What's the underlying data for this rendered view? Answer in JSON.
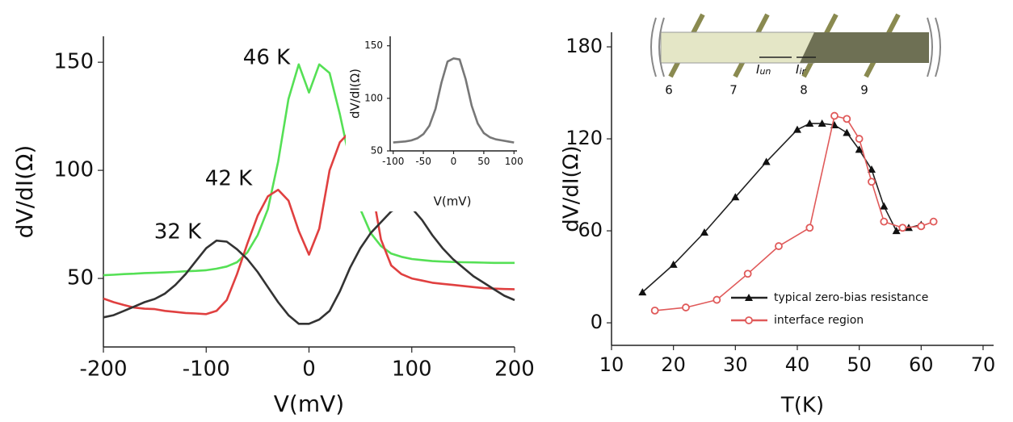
{
  "chart_data": [
    {
      "type": "line",
      "xlabel": "V(mV)",
      "ylabel": "dV/dI(Ω)",
      "x": [
        -200,
        -190,
        -180,
        -170,
        -160,
        -150,
        -140,
        -130,
        -120,
        -110,
        -100,
        -90,
        -80,
        -70,
        -60,
        -50,
        -40,
        -30,
        -20,
        -10,
        0,
        10,
        20,
        30,
        40,
        50,
        60,
        70,
        80,
        90,
        100,
        110,
        120,
        130,
        140,
        150,
        160,
        170,
        180,
        190,
        200
      ],
      "series": [
        {
          "name": "46 K",
          "color": "#55e055",
          "values": [
            51.5,
            51.7,
            52,
            52.2,
            52.5,
            52.6,
            52.8,
            53,
            53.3,
            53.5,
            53.8,
            54.5,
            55.5,
            57.5,
            62,
            70,
            82,
            104,
            133,
            149,
            136,
            149,
            145,
            126,
            104,
            82,
            71,
            65,
            61.5,
            60,
            59,
            58.5,
            58,
            57.8,
            57.6,
            57.5,
            57.4,
            57.3,
            57.2,
            57.2,
            57.2
          ]
        },
        {
          "name": "42 K",
          "color": "#e04040",
          "values": [
            40.7,
            39,
            37.7,
            36.5,
            36,
            35.8,
            35,
            34.5,
            34,
            33.8,
            33.5,
            35,
            40,
            52,
            66,
            79,
            88,
            91,
            86,
            72,
            61,
            73,
            100,
            113,
            118,
            118,
            95,
            68,
            56,
            52,
            50,
            49,
            48,
            47.5,
            47,
            46.5,
            46,
            45.5,
            45.3,
            45.1,
            45
          ]
        },
        {
          "name": "32 K",
          "color": "#333333",
          "values": [
            32,
            33,
            35,
            37,
            39,
            40.5,
            43,
            47,
            52,
            58,
            64,
            67.5,
            67,
            63.5,
            59,
            53,
            46,
            39,
            33,
            29,
            29,
            31,
            35,
            44,
            55,
            64,
            71,
            76,
            81,
            83.5,
            82.5,
            77,
            70,
            64,
            59,
            55,
            51,
            48,
            45,
            42,
            40
          ]
        }
      ],
      "xlim": [
        -200,
        200
      ],
      "ylim": [
        18.3,
        162
      ],
      "xticks": [
        -200,
        -100,
        0,
        100,
        200
      ],
      "yticks": [
        50,
        100,
        150
      ]
    },
    {
      "type": "line",
      "xlabel": "V(mV)",
      "ylabel": "dV/dI(Ω)",
      "x": [
        -100,
        -90,
        -80,
        -70,
        -60,
        -50,
        -40,
        -30,
        -20,
        -10,
        0,
        10,
        20,
        30,
        40,
        50,
        60,
        70,
        80,
        90,
        100
      ],
      "series": [
        {
          "color": "#777777",
          "values": [
            58,
            58.5,
            59,
            60,
            62,
            66,
            74,
            90,
            115,
            135,
            138,
            137,
            118,
            93,
            76,
            67,
            63,
            61,
            60,
            59,
            58
          ]
        }
      ],
      "xlim": [
        -105,
        105
      ],
      "ylim": [
        50,
        159
      ],
      "xticks": [
        -100,
        -50,
        0,
        50,
        100
      ],
      "yticks": [
        50,
        100,
        150
      ]
    },
    {
      "type": "line",
      "xlabel": "T(K)",
      "ylabel": "dV/dI(Ω)",
      "legend": "lower right",
      "series": [
        {
          "name": "typical zero-bias resistance",
          "color": "#222222",
          "marker": "triangle",
          "x": [
            15,
            20,
            25,
            30,
            35,
            40,
            42,
            44,
            46,
            48,
            50,
            52,
            54,
            56,
            58,
            60
          ],
          "values": [
            20,
            38,
            59,
            82,
            105,
            126,
            130,
            130,
            129,
            124,
            113,
            100,
            76,
            60,
            62,
            64
          ]
        },
        {
          "name": "interface region",
          "color": "#e05a5a",
          "marker": "circle",
          "x": [
            17,
            22,
            27,
            32,
            37,
            42,
            46,
            48,
            50,
            52,
            54,
            57,
            60,
            62
          ],
          "values": [
            8,
            10,
            15,
            32,
            50,
            62,
            135,
            133,
            120,
            92,
            66,
            62,
            63,
            66
          ]
        }
      ],
      "xlim": [
        10,
        71.7
      ],
      "ylim": [
        -14.7,
        189.5
      ],
      "xticks": [
        10,
        20,
        30,
        40,
        50,
        60,
        70
      ],
      "yticks": [
        0,
        60,
        120,
        180
      ]
    }
  ],
  "diagram": {
    "contacts": [
      "6",
      "7",
      "8",
      "9"
    ],
    "currents": [
      {
        "symbol": "I",
        "subscript": "un"
      },
      {
        "symbol": "I",
        "subscript": "ir"
      }
    ]
  }
}
